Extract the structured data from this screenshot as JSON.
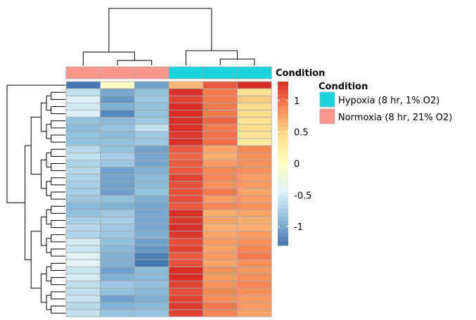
{
  "chart_data": {
    "type": "heatmap",
    "annotation_track_label": "Condition",
    "legend": {
      "title": "Condition",
      "entries": [
        {
          "label": "Hypoxia (8 hr, 1% O2)",
          "color": "#19d3e0"
        },
        {
          "label": "Normoxia (8 hr, 21% O2)",
          "color": "#f9958f"
        }
      ]
    },
    "colorbar": {
      "ticks": [
        1,
        0.5,
        0,
        -0.5,
        -1
      ],
      "tick_labels": [
        "1",
        "0.5",
        "0",
        "-0.5",
        "-1"
      ],
      "range": [
        -1.3,
        1.3
      ],
      "colors": [
        "#4575b4",
        "#91bfdb",
        "#e0f3f8",
        "#ffffbf",
        "#fee090",
        "#fc8d59",
        "#d73027"
      ]
    },
    "columns": [
      {
        "condition": "Normoxia (8 hr, 21% O2)"
      },
      {
        "condition": "Normoxia (8 hr, 21% O2)"
      },
      {
        "condition": "Normoxia (8 hr, 21% O2)"
      },
      {
        "condition": "Hypoxia (8 hr, 1% O2)"
      },
      {
        "condition": "Hypoxia (8 hr, 1% O2)"
      },
      {
        "condition": "Hypoxia (8 hr, 1% O2)"
      }
    ],
    "values": [
      [
        -1.3,
        -0.05,
        -1.05,
        0.65,
        1.1,
        1.3
      ],
      [
        -0.6,
        -1.0,
        -0.85,
        1.3,
        0.95,
        0.4
      ],
      [
        -0.45,
        -1.1,
        -0.8,
        1.2,
        0.95,
        0.55
      ],
      [
        -0.5,
        -0.95,
        -0.85,
        1.35,
        0.95,
        0.45
      ],
      [
        -0.45,
        -1.2,
        -0.85,
        1.35,
        0.95,
        0.45
      ],
      [
        -0.85,
        -0.9,
        -0.8,
        1.3,
        1.05,
        0.4
      ],
      [
        -0.9,
        -0.85,
        -0.6,
        1.3,
        0.95,
        0.45
      ],
      [
        -0.85,
        -0.9,
        -0.8,
        1.25,
        1.0,
        0.35
      ],
      [
        -0.85,
        -0.85,
        -0.8,
        1.3,
        1.0,
        0.25
      ],
      [
        -0.65,
        -0.85,
        -1.05,
        1.1,
        0.75,
        0.9
      ],
      [
        -0.6,
        -0.75,
        -1.0,
        1.05,
        0.7,
        0.85
      ],
      [
        -0.7,
        -0.8,
        -1.0,
        1.1,
        0.8,
        0.85
      ],
      [
        -0.65,
        -1.05,
        -0.95,
        1.1,
        0.9,
        0.85
      ],
      [
        -0.7,
        -1.05,
        -0.9,
        1.2,
        0.9,
        0.8
      ],
      [
        -0.75,
        -1.05,
        -0.9,
        1.15,
        0.85,
        0.8
      ],
      [
        -0.75,
        -1.05,
        -0.85,
        1.15,
        0.95,
        0.75
      ],
      [
        -0.8,
        -0.85,
        -0.95,
        1.15,
        0.8,
        0.8
      ],
      [
        -0.9,
        -0.95,
        -1.0,
        1.1,
        0.9,
        0.85
      ],
      [
        -0.85,
        -0.8,
        -1.0,
        1.3,
        0.7,
        0.75
      ],
      [
        -0.75,
        -0.75,
        -1.0,
        1.25,
        0.75,
        0.7
      ],
      [
        -0.65,
        -0.8,
        -1.0,
        1.3,
        0.7,
        0.7
      ],
      [
        -0.7,
        -0.8,
        -0.95,
        1.25,
        0.75,
        0.8
      ],
      [
        -0.5,
        -0.85,
        -1.05,
        1.15,
        0.8,
        0.85
      ],
      [
        -0.55,
        -0.9,
        -1.1,
        1.2,
        0.75,
        0.9
      ],
      [
        -0.45,
        -0.95,
        -1.25,
        1.1,
        0.8,
        0.95
      ],
      [
        -0.4,
        -0.95,
        -1.3,
        1.15,
        0.75,
        0.85
      ],
      [
        -0.55,
        -1.05,
        -0.9,
        1.35,
        0.85,
        0.8
      ],
      [
        -0.5,
        -0.95,
        -0.9,
        1.3,
        0.8,
        0.85
      ],
      [
        -0.6,
        -0.8,
        -0.85,
        1.2,
        0.85,
        0.9
      ],
      [
        -0.6,
        -0.85,
        -0.9,
        1.15,
        0.9,
        0.85
      ],
      [
        -0.55,
        -1.05,
        -0.95,
        1.2,
        0.85,
        0.8
      ],
      [
        -0.65,
        -0.95,
        -0.9,
        1.25,
        0.95,
        0.8
      ],
      [
        -0.6,
        -0.85,
        -0.85,
        1.2,
        0.9,
        0.75
      ]
    ]
  }
}
